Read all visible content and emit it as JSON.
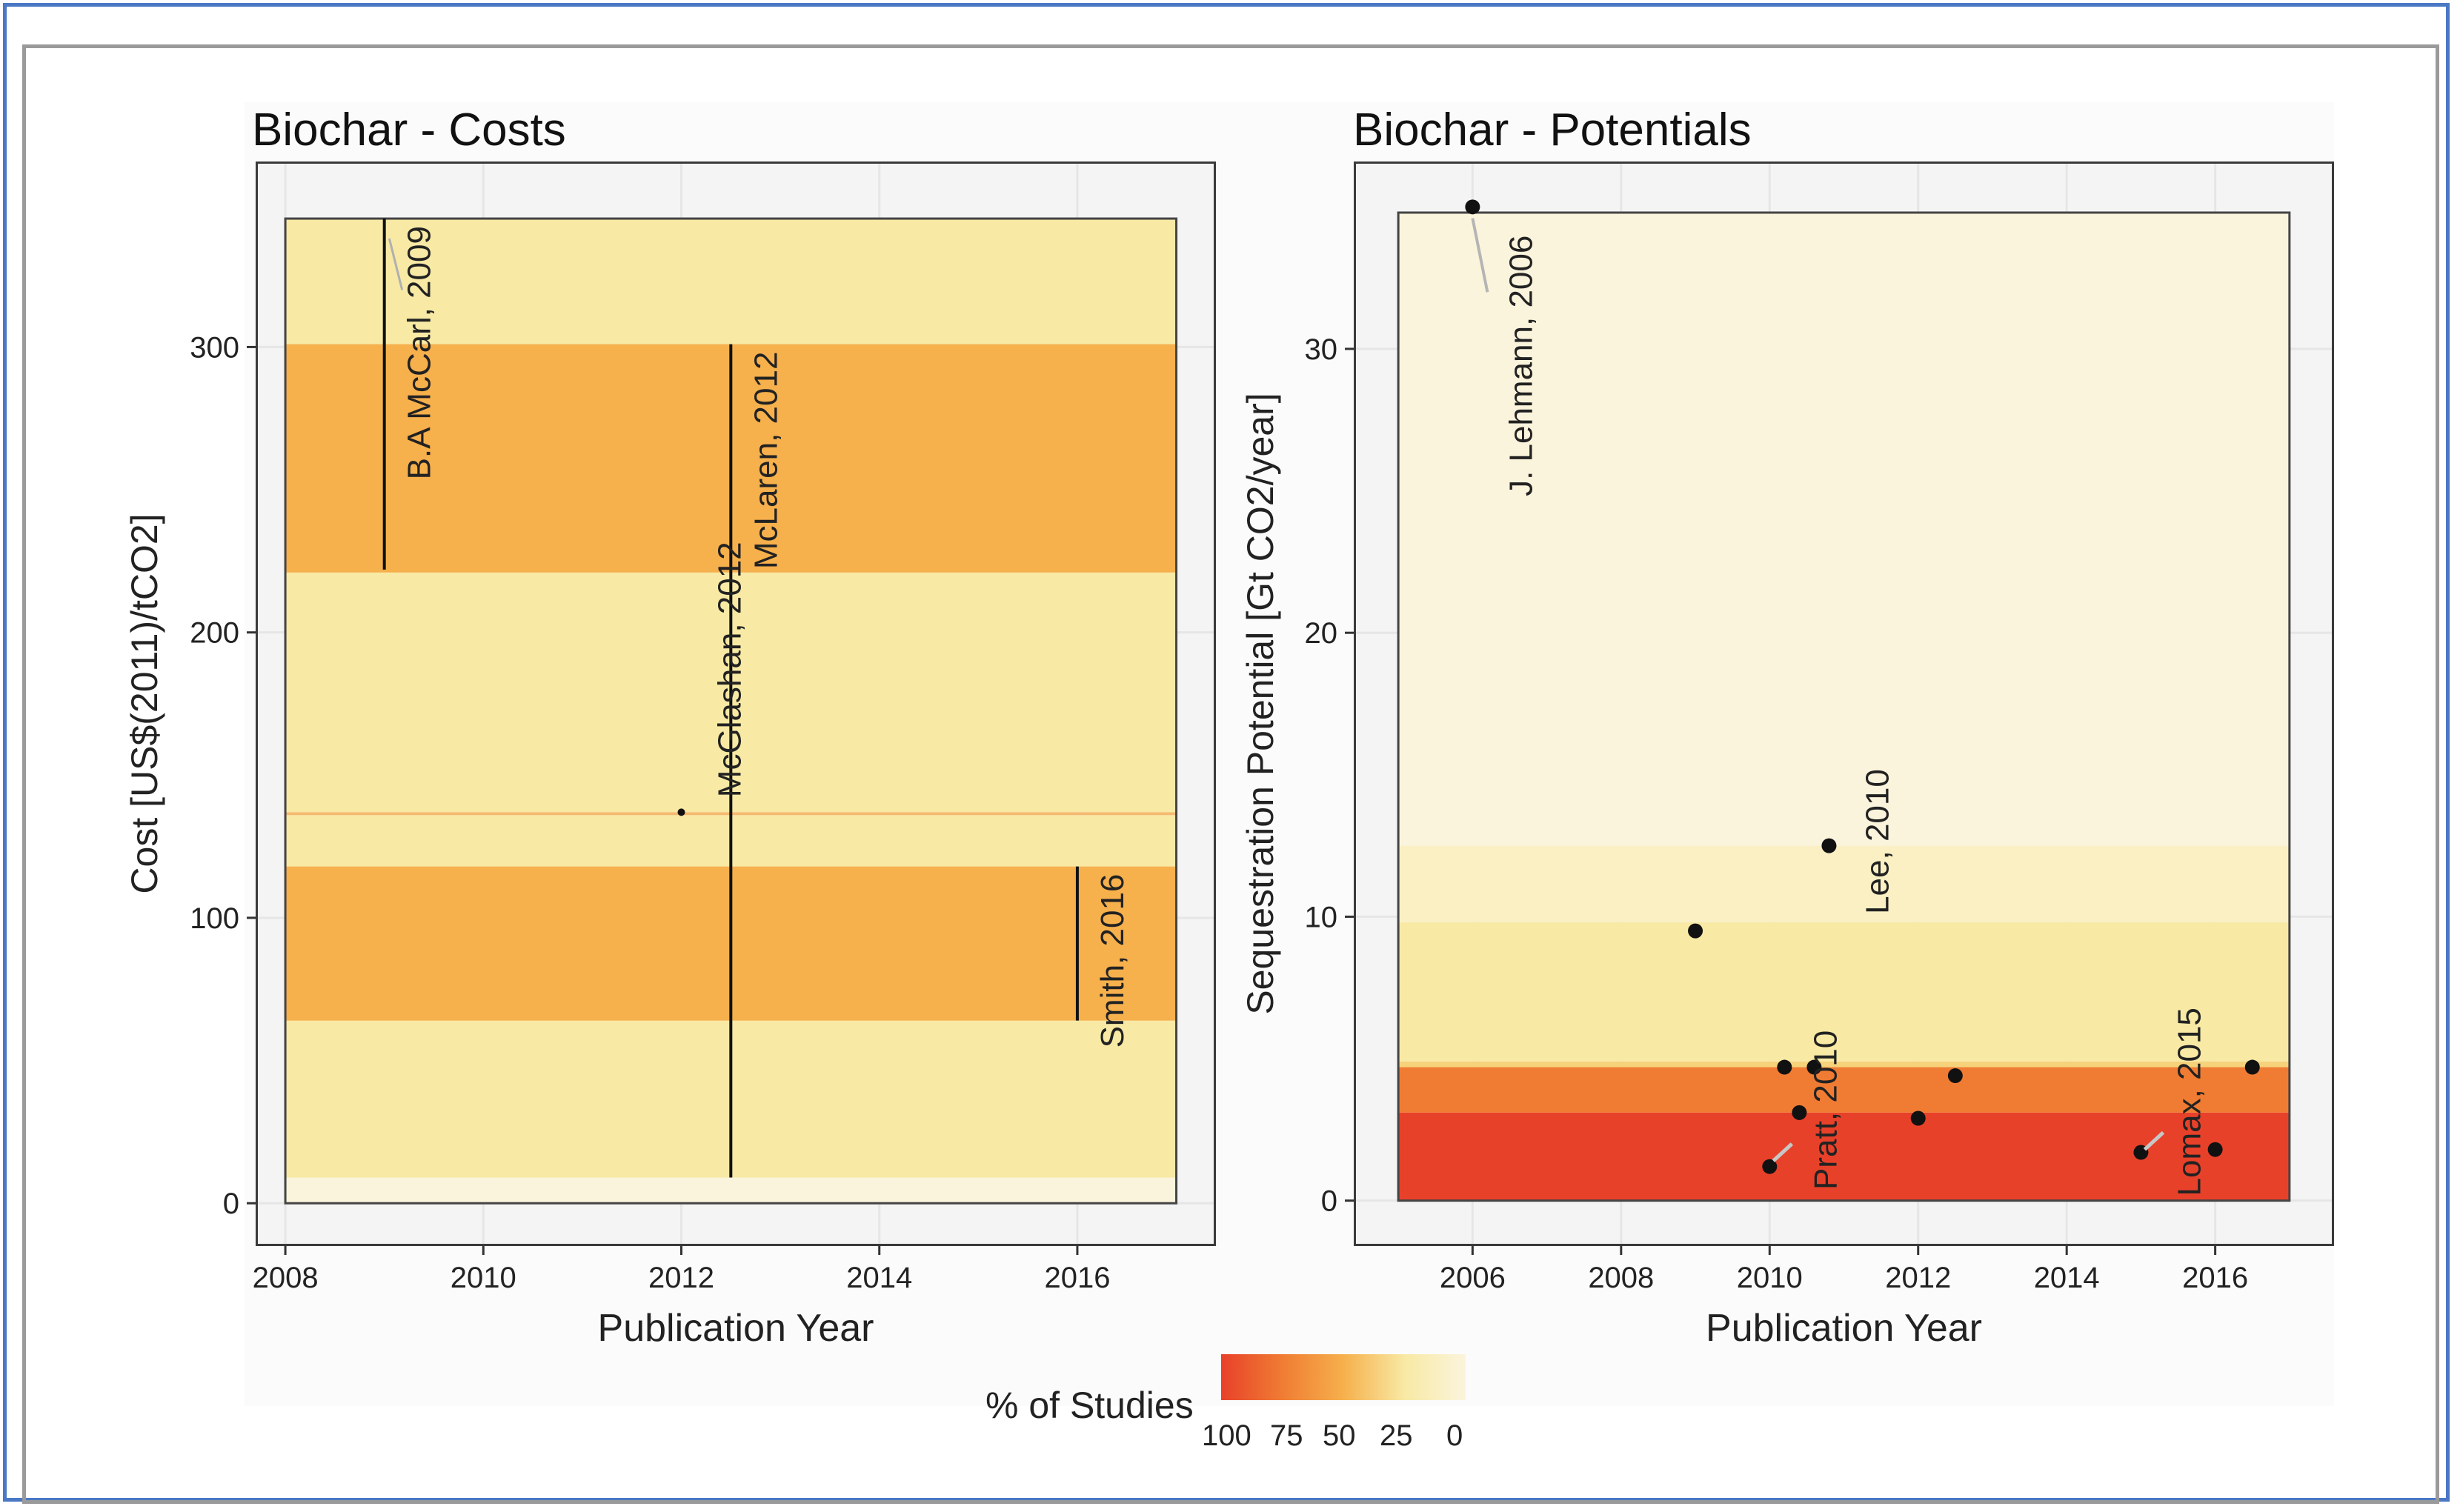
{
  "legend": {
    "title": "% of Studies",
    "ticks": [
      "100",
      "75",
      "50",
      "25",
      "0"
    ],
    "colors": [
      "#e8412a",
      "#f07c33",
      "#f6b04c",
      "#f8e9a4",
      "#fbf4dc"
    ]
  },
  "chart_data": [
    {
      "type": "bar",
      "title": "Biochar - Costs",
      "xlabel": "Publication Year",
      "ylabel": "Cost [US$(2011)/tCO2]",
      "xlim": [
        2007.7,
        2017.4
      ],
      "ylim": [
        -15,
        365
      ],
      "xticks": [
        "2008",
        "2010",
        "2012",
        "2014",
        "2016"
      ],
      "xtick_values": [
        2008,
        2010,
        2012,
        2014,
        2016
      ],
      "yticks": [
        "0",
        "100",
        "200",
        "300"
      ],
      "ytick_values": [
        0,
        100,
        200,
        300
      ],
      "panel_x": [
        2008,
        2017
      ],
      "panel_y": [
        0,
        345
      ],
      "bands": [
        {
          "y0": 0,
          "y1": 9,
          "pct": 0,
          "color": "#fbf4dc"
        },
        {
          "y0": 9,
          "y1": 64,
          "pct": 25,
          "color": "#f8e9a4"
        },
        {
          "y0": 64,
          "y1": 118,
          "pct": 50,
          "color": "#f6b04c"
        },
        {
          "y0": 118,
          "y1": 136,
          "pct": 25,
          "color": "#f8e9a4"
        },
        {
          "y0": 136,
          "y1": 137,
          "pct": 40,
          "color": "#f6b870"
        },
        {
          "y0": 137,
          "y1": 221,
          "pct": 25,
          "color": "#f8e9a4"
        },
        {
          "y0": 221,
          "y1": 301,
          "pct": 50,
          "color": "#f6b04c"
        },
        {
          "y0": 301,
          "y1": 345,
          "pct": 25,
          "color": "#f8e9a4"
        }
      ],
      "ranges": [
        {
          "label": "B.A McCarl, 2009",
          "x": 2009.0,
          "y0": 222,
          "y1": 345
        },
        {
          "label": "McLaren, 2012",
          "x": 2012.5,
          "y0": 9,
          "y1": 301
        },
        {
          "label": "Smith, 2016",
          "x": 2016.0,
          "y0": 64,
          "y1": 118
        }
      ],
      "points": [
        {
          "label": "McGlashan, 2012",
          "x": 2012.0,
          "y": 137
        }
      ]
    },
    {
      "type": "scatter",
      "title": "Biochar - Potentials",
      "xlabel": "Publication Year",
      "ylabel": "Sequestration Potential [Gt CO2/year]",
      "xlim": [
        2004.4,
        2017.6
      ],
      "ylim": [
        -1.6,
        36.6
      ],
      "xticks": [
        "2006",
        "2008",
        "2010",
        "2012",
        "2014",
        "2016"
      ],
      "xtick_values": [
        2006,
        2008,
        2010,
        2012,
        2014,
        2016
      ],
      "yticks": [
        "0",
        "10",
        "20",
        "30"
      ],
      "ytick_values": [
        0,
        10,
        20,
        30
      ],
      "panel_x": [
        2005,
        2017
      ],
      "panel_y": [
        0,
        34.8
      ],
      "bands": [
        {
          "y0": 0,
          "y1": 3.1,
          "pct": 100,
          "color": "#e8412a"
        },
        {
          "y0": 3.1,
          "y1": 4.7,
          "pct": 75,
          "color": "#f07c33"
        },
        {
          "y0": 4.7,
          "y1": 4.9,
          "pct": 40,
          "color": "#f6d27a"
        },
        {
          "y0": 4.9,
          "y1": 9.8,
          "pct": 25,
          "color": "#f8e9a4"
        },
        {
          "y0": 9.8,
          "y1": 12.5,
          "pct": 15,
          "color": "#faf0c4"
        },
        {
          "y0": 12.5,
          "y1": 34.8,
          "pct": 5,
          "color": "#fbf4dc"
        }
      ],
      "points": [
        {
          "x": 2006.0,
          "y": 35.0
        },
        {
          "x": 2009.0,
          "y": 9.5
        },
        {
          "x": 2010.0,
          "y": 1.2
        },
        {
          "x": 2010.2,
          "y": 4.7
        },
        {
          "x": 2010.4,
          "y": 3.1
        },
        {
          "x": 2010.6,
          "y": 4.7
        },
        {
          "x": 2010.8,
          "y": 12.5
        },
        {
          "x": 2012.0,
          "y": 2.9
        },
        {
          "x": 2012.5,
          "y": 4.4
        },
        {
          "x": 2015.0,
          "y": 1.7
        },
        {
          "x": 2016.0,
          "y": 1.8
        },
        {
          "x": 2016.5,
          "y": 4.7
        }
      ],
      "labels": [
        {
          "label": "J. Lehmann, 2006",
          "x": 2006.7,
          "y": 24.0
        },
        {
          "label": "Lee, 2010",
          "x": 2011.5,
          "y": 10.0
        },
        {
          "label": "Pratt, 2010",
          "x": 2010.7,
          "y": 0.0
        },
        {
          "label": "Lomax, 2015",
          "x": 2015.6,
          "y": 0.0
        }
      ]
    }
  ]
}
